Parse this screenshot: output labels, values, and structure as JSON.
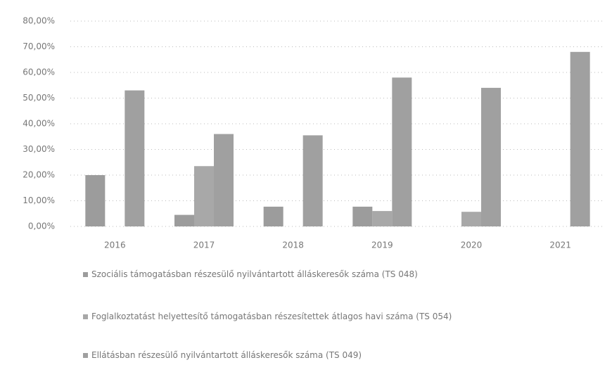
{
  "chart_data": {
    "type": "bar",
    "categories": [
      "2016",
      "2017",
      "2018",
      "2019",
      "2020",
      "2021"
    ],
    "series": [
      {
        "name": "Szociális támogatásban részesülő nyilvántartott álláskeresők száma (TS 048)",
        "color": "#9c9c9c",
        "values": [
          20,
          4.5,
          7.7,
          7.7,
          0,
          0
        ]
      },
      {
        "name": "Foglalkoztatást helyettesítő támogatásban részesítettek átlagos havi száma (TS 054)",
        "color": "#a8a8a8",
        "values": [
          0,
          23.5,
          0,
          6,
          5.7,
          0
        ]
      },
      {
        "name": "Ellátásban részesülő nyilvántartott álláskeresők száma (TS 049)",
        "color": "#a0a0a0",
        "values": [
          53,
          36,
          35.5,
          58,
          54,
          68
        ]
      }
    ],
    "ylim": [
      0,
      80
    ],
    "yticks": [
      {
        "value": 0,
        "label": "0,00%"
      },
      {
        "value": 10,
        "label": "10,00%"
      },
      {
        "value": 20,
        "label": "20,00%"
      },
      {
        "value": 30,
        "label": "30,00%"
      },
      {
        "value": 40,
        "label": "40,00%"
      },
      {
        "value": 50,
        "label": "50,00%"
      },
      {
        "value": 60,
        "label": "60,00%"
      },
      {
        "value": 70,
        "label": "70,00%"
      },
      {
        "value": 80,
        "label": "80,00%"
      }
    ],
    "grid": true
  }
}
